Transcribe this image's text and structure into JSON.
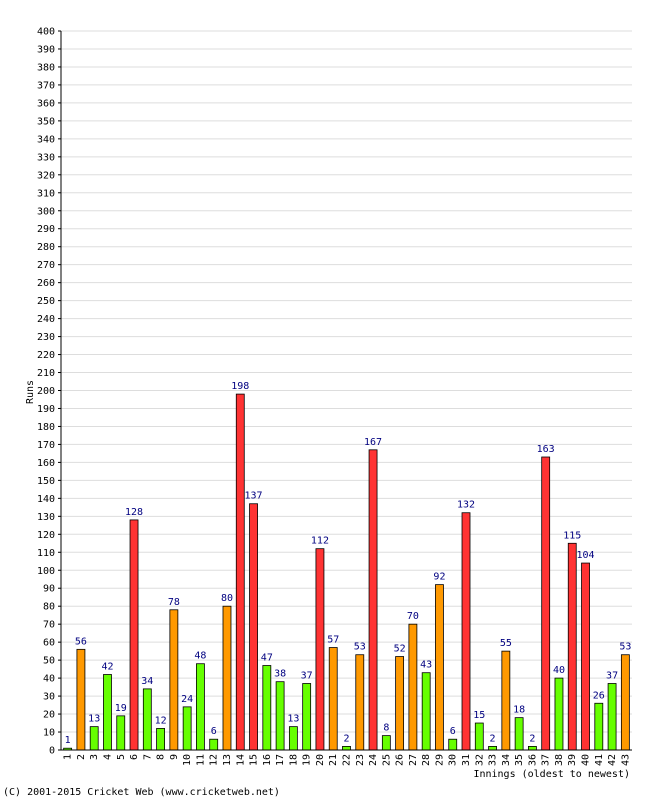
{
  "chart_data": {
    "type": "bar",
    "ylabel": "Runs",
    "xlabel": "Innings (oldest to newest)",
    "ylim": [
      0,
      400
    ],
    "ytick_step": 10,
    "grid": true,
    "categories": [
      "1",
      "2",
      "3",
      "4",
      "5",
      "6",
      "7",
      "8",
      "9",
      "10",
      "11",
      "12",
      "13",
      "14",
      "15",
      "16",
      "17",
      "18",
      "19",
      "20",
      "21",
      "22",
      "23",
      "24",
      "25",
      "26",
      "27",
      "28",
      "29",
      "30",
      "31",
      "32",
      "33",
      "34",
      "35",
      "36",
      "37",
      "38",
      "39",
      "40",
      "41",
      "42",
      "43"
    ],
    "values": [
      1,
      56,
      13,
      42,
      19,
      128,
      34,
      12,
      78,
      24,
      48,
      6,
      80,
      198,
      137,
      47,
      38,
      13,
      37,
      112,
      57,
      2,
      53,
      167,
      8,
      52,
      70,
      43,
      92,
      6,
      132,
      15,
      2,
      55,
      18,
      2,
      163,
      40,
      115,
      104,
      26,
      37,
      53
    ],
    "color_rule": {
      "below_50": "#66ff00",
      "50_to_99": "#ff9900",
      "100_plus": "#ff3333"
    }
  },
  "footer": "(C) 2001-2015 Cricket Web (www.cricketweb.net)"
}
